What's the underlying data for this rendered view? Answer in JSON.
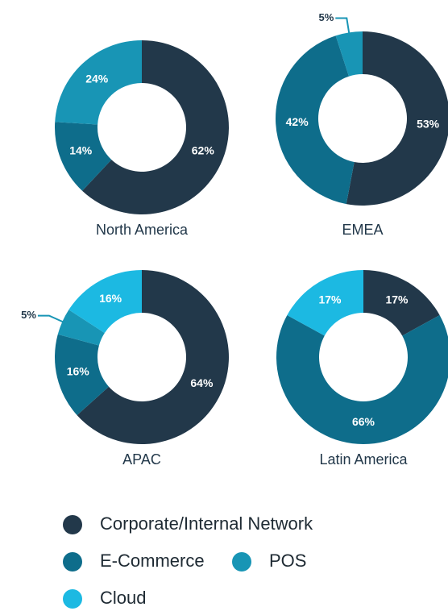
{
  "legend": [
    {
      "name": "Corporate/Internal Network",
      "color": "#22384a"
    },
    {
      "name": "E-Commerce",
      "color": "#0e6d8b"
    },
    {
      "name": "POS",
      "color": "#1895b5"
    },
    {
      "name": "Cloud",
      "color": "#1cb9e2"
    }
  ],
  "chart_data": [
    {
      "type": "pie",
      "title": "North America",
      "values": [
        62,
        14,
        24,
        0
      ],
      "value_labels": [
        "62%",
        "14%",
        "24%",
        null
      ]
    },
    {
      "type": "pie",
      "title": "EMEA",
      "values": [
        53,
        42,
        5,
        0
      ],
      "value_labels": [
        "53%",
        "42%",
        "5%",
        null
      ]
    },
    {
      "type": "pie",
      "title": "APAC",
      "values": [
        64,
        16,
        5,
        16
      ],
      "value_labels": [
        "64%",
        "16%",
        "5%",
        "16%"
      ]
    },
    {
      "type": "pie",
      "title": "Latin America",
      "values": [
        17,
        66,
        0,
        17
      ],
      "value_labels": [
        "17%",
        "66%",
        null,
        "17%"
      ]
    }
  ]
}
